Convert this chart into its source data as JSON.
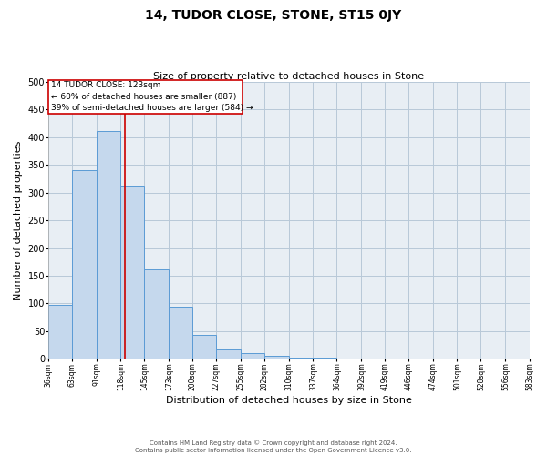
{
  "title": "14, TUDOR CLOSE, STONE, ST15 0JY",
  "subtitle": "Size of property relative to detached houses in Stone",
  "xlabel": "Distribution of detached houses by size in Stone",
  "ylabel": "Number of detached properties",
  "bar_color": "#c5d8ed",
  "bar_edge_color": "#5b9bd5",
  "grid_color": "#b8c8d8",
  "background_color": "#e8eef4",
  "property_line_x": 123,
  "property_line_color": "#cc0000",
  "annotation_box_color": "#cc0000",
  "annotation_text": "14 TUDOR CLOSE: 123sqm\n← 60% of detached houses are smaller (887)\n39% of semi-detached houses are larger (584) →",
  "bin_edges": [
    36,
    63,
    91,
    118,
    145,
    173,
    200,
    227,
    255,
    282,
    310,
    337,
    364,
    392,
    419,
    446,
    474,
    501,
    528,
    556,
    583
  ],
  "bar_heights": [
    97,
    341,
    411,
    313,
    162,
    95,
    43,
    17,
    10,
    5,
    3,
    2,
    1,
    1,
    0,
    0,
    1,
    0,
    1,
    0
  ],
  "xlim": [
    36,
    583
  ],
  "ylim": [
    0,
    500
  ],
  "yticks": [
    0,
    50,
    100,
    150,
    200,
    250,
    300,
    350,
    400,
    450,
    500
  ],
  "footnote": "Contains HM Land Registry data © Crown copyright and database right 2024.\nContains public sector information licensed under the Open Government Licence v3.0.",
  "figsize": [
    6.0,
    5.0
  ],
  "dpi": 100
}
